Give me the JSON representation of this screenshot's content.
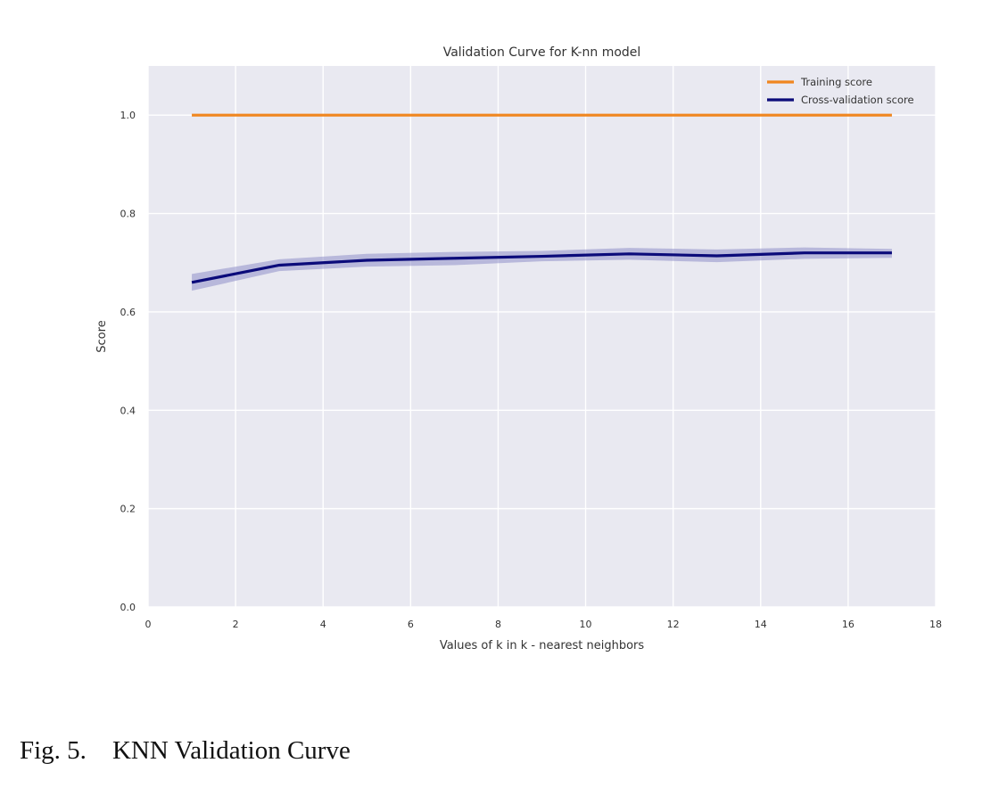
{
  "chart_data": {
    "type": "line",
    "title": "Validation Curve for K-nn model",
    "xlabel": "Values of k in k - nearest neighbors",
    "ylabel": "Score",
    "xlim": [
      0,
      18
    ],
    "ylim": [
      0.0,
      1.1
    ],
    "xticks": [
      0,
      2,
      4,
      6,
      8,
      10,
      12,
      14,
      16,
      18
    ],
    "xtick_labels": [
      "0",
      "2",
      "4",
      "6",
      "8",
      "10",
      "12",
      "14",
      "16",
      "18"
    ],
    "yticks": [
      0.0,
      0.2,
      0.4,
      0.6,
      0.8,
      1.0
    ],
    "ytick_labels": [
      "0.0",
      "0.2",
      "0.4",
      "0.6",
      "0.8",
      "1.0"
    ],
    "grid": true,
    "legend_position": "top-right",
    "background": "#e9e9f1",
    "x": [
      1,
      3,
      5,
      7,
      9,
      11,
      13,
      15,
      17
    ],
    "series": [
      {
        "name": "Training score",
        "color": "#f0861f",
        "values": [
          1.0,
          1.0,
          1.0,
          1.0,
          1.0,
          1.0,
          1.0,
          1.0,
          1.0
        ],
        "band_lower": [
          1.0,
          1.0,
          1.0,
          1.0,
          1.0,
          1.0,
          1.0,
          1.0,
          1.0
        ],
        "band_upper": [
          1.0,
          1.0,
          1.0,
          1.0,
          1.0,
          1.0,
          1.0,
          1.0,
          1.0
        ]
      },
      {
        "name": "Cross-validation score",
        "color": "#0b0b7a",
        "band_color": "#8f8fc9",
        "values": [
          0.66,
          0.695,
          0.705,
          0.709,
          0.713,
          0.718,
          0.714,
          0.72,
          0.72
        ],
        "band_lower": [
          0.643,
          0.683,
          0.692,
          0.695,
          0.703,
          0.706,
          0.701,
          0.708,
          0.71
        ],
        "band_upper": [
          0.677,
          0.707,
          0.718,
          0.722,
          0.724,
          0.73,
          0.727,
          0.731,
          0.728
        ]
      }
    ]
  },
  "caption": {
    "label": "Fig. 5.",
    "text": "KNN Validation Curve"
  }
}
